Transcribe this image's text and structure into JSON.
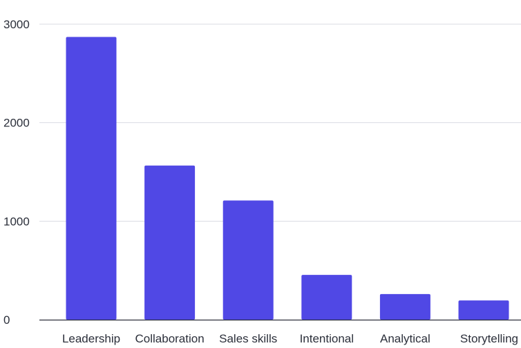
{
  "chart_data": {
    "type": "bar",
    "title": "",
    "xlabel": "",
    "ylabel": "",
    "categories": [
      "Leadership",
      "Collaboration",
      "Sales skills",
      "Intentional",
      "Analytical",
      "Storytelling"
    ],
    "values": [
      2870,
      1565,
      1210,
      455,
      260,
      195
    ],
    "ylim": [
      0,
      3000
    ],
    "yticks": [
      0,
      1000,
      2000,
      3000
    ],
    "ytick_labels": [
      "0",
      "1000",
      "2000",
      "3000"
    ],
    "grid": true,
    "legend": "none",
    "colors": {
      "bar": "#5048e5",
      "grid": "#d9dbe3",
      "text": "#2b2f3a"
    }
  }
}
